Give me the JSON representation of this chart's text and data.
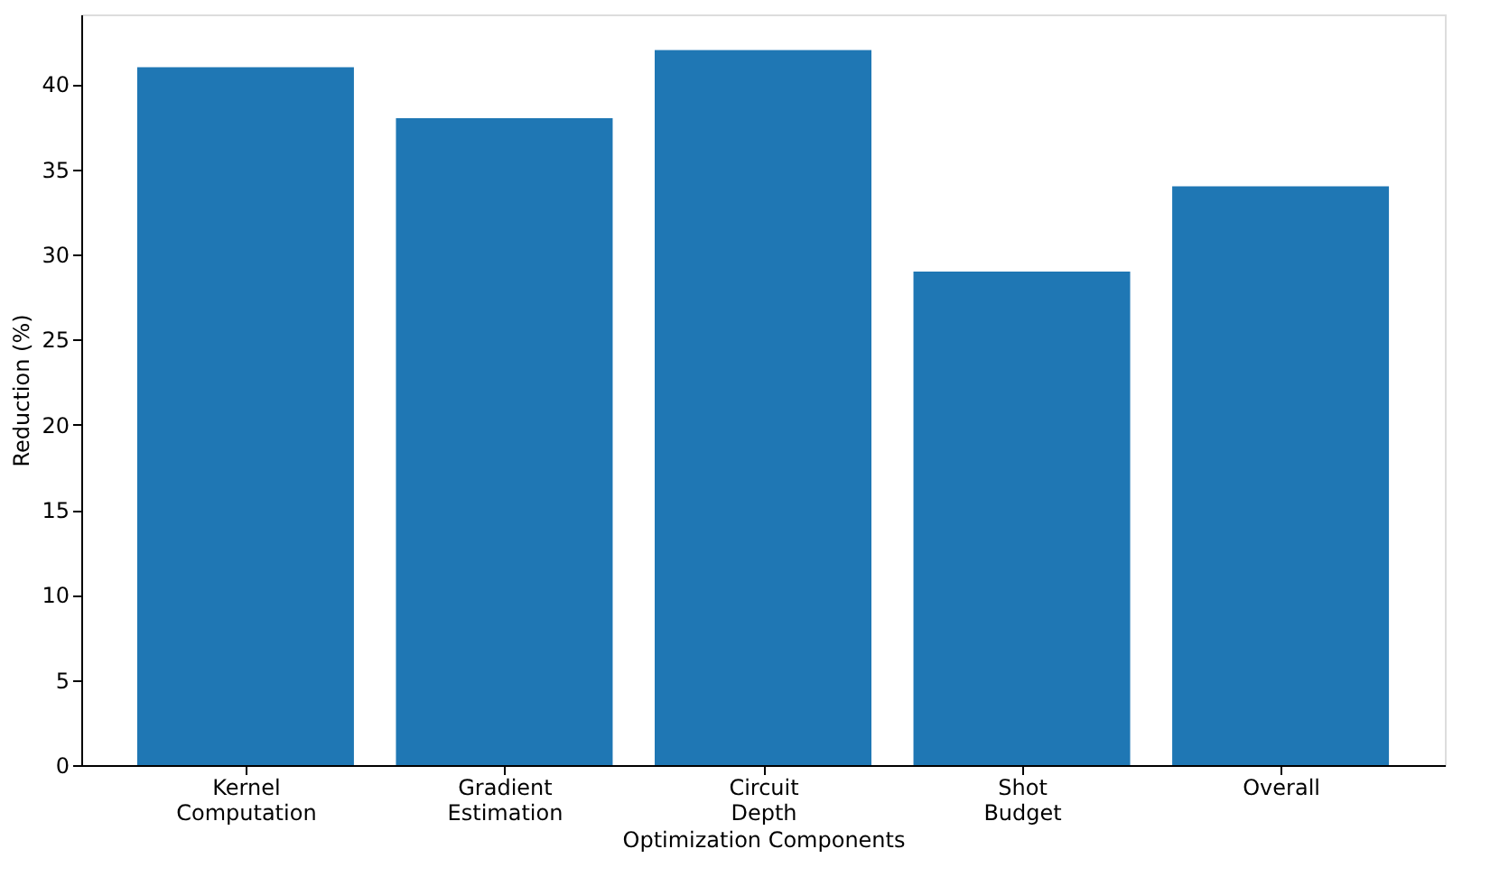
{
  "chart_data": {
    "type": "bar",
    "categories": [
      "Kernel\nComputation",
      "Gradient\nEstimation",
      "Circuit\nDepth",
      "Shot\nBudget",
      "Overall"
    ],
    "values": [
      41,
      38,
      42,
      29,
      34
    ],
    "color": "#1f77b4",
    "xlabel": "Optimization Components",
    "ylabel": "Reduction (%)",
    "ylim": [
      0,
      44.1
    ],
    "yticks": [
      0,
      5,
      10,
      15,
      20,
      25,
      30,
      35,
      40
    ],
    "grid": false
  }
}
